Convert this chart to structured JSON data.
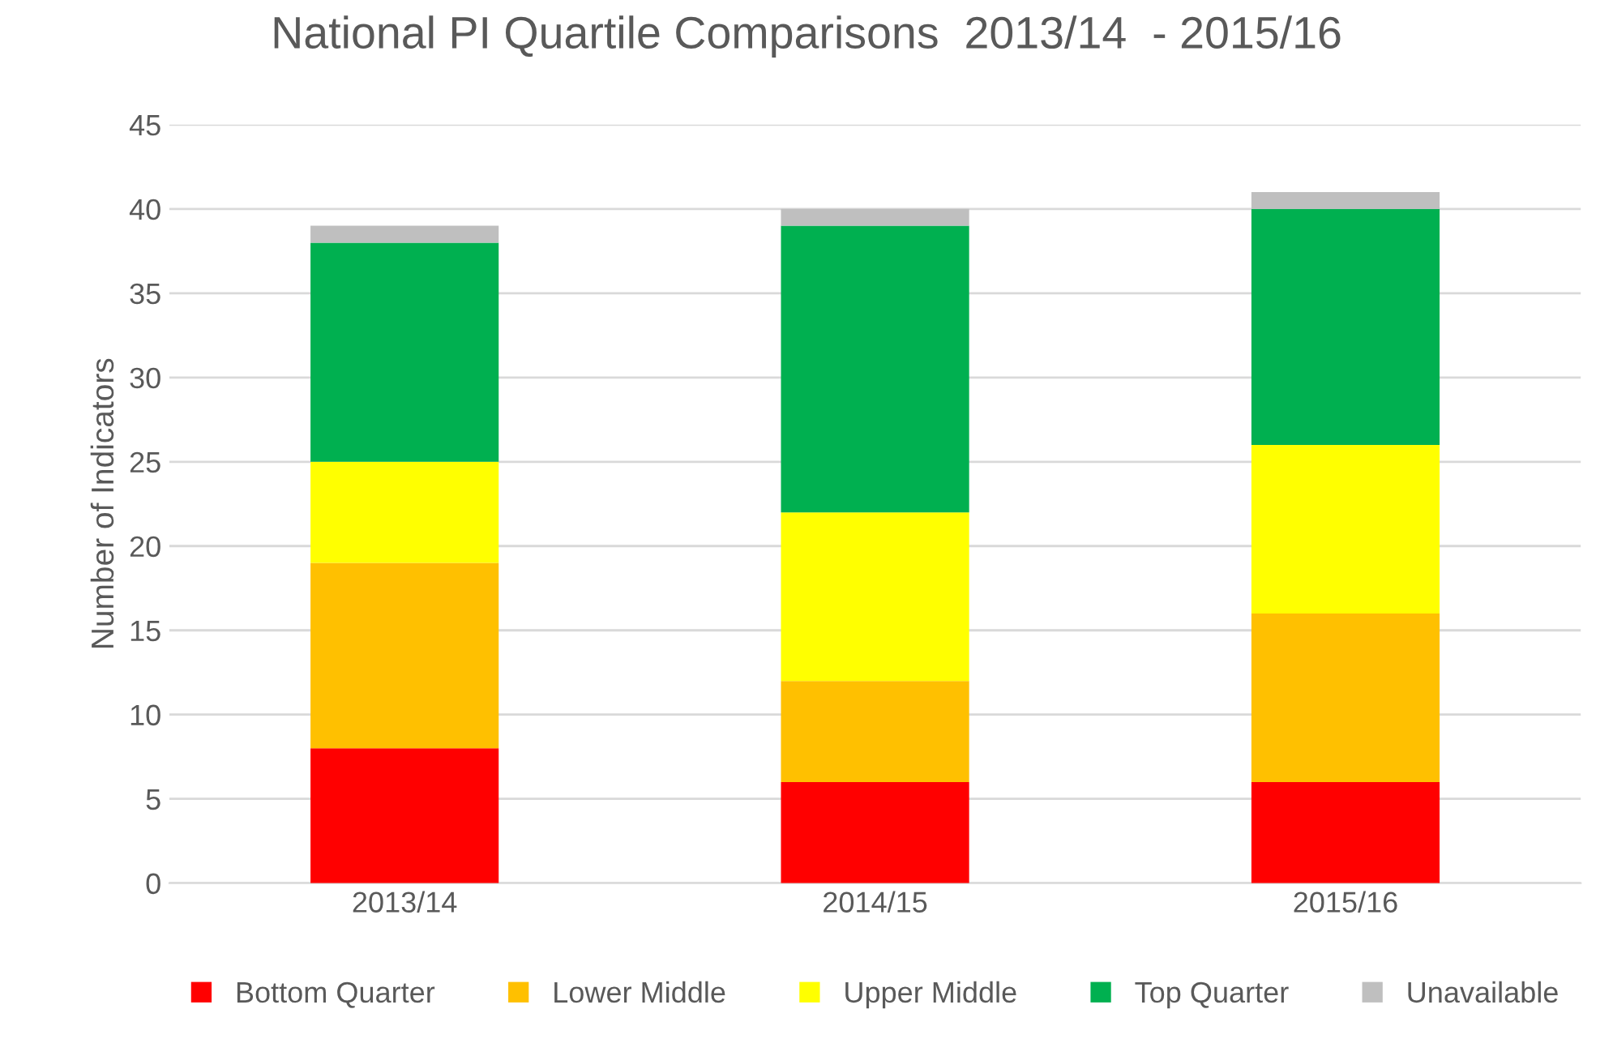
{
  "chart_data": {
    "type": "bar",
    "title": "National PI Quartile Comparisons  2013/14  - 2015/16",
    "ylabel": "Number of Indicators",
    "categories": [
      "2013/14",
      "2014/15",
      "2015/16"
    ],
    "stacked": true,
    "series": [
      {
        "name": "Bottom Quarter",
        "color": "#ff0000",
        "values": [
          8,
          6,
          6
        ]
      },
      {
        "name": "Lower Middle",
        "color": "#ffc000",
        "values": [
          11,
          6,
          10
        ]
      },
      {
        "name": "Upper Middle",
        "color": "#ffff00",
        "values": [
          6,
          10,
          10
        ]
      },
      {
        "name": "Top Quarter",
        "color": "#00b050",
        "values": [
          13,
          17,
          14
        ]
      },
      {
        "name": "Unavailable",
        "color": "#bfbfbf",
        "values": [
          1,
          1,
          1
        ]
      }
    ],
    "ylim": [
      0,
      45
    ],
    "yticks": [
      0,
      5,
      10,
      15,
      20,
      25,
      30,
      35,
      40,
      45
    ],
    "grid": "y",
    "legend": "bottom"
  }
}
